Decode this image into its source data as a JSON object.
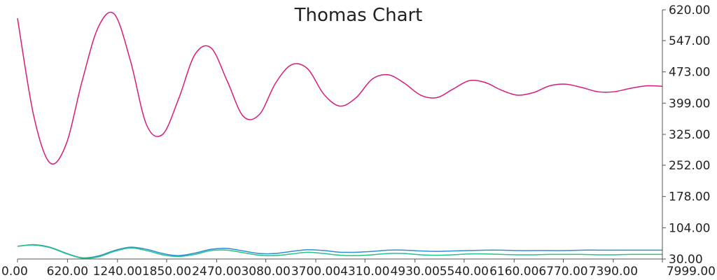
{
  "chart_data": {
    "type": "line",
    "title": "Thomas Chart",
    "xlabel": "",
    "ylabel": "",
    "xlim": [
      0,
      7999
    ],
    "ylim": [
      30,
      620
    ],
    "x_tick_labels": [
      "0.00",
      "620.00",
      "1240.00",
      "1850.00",
      "2470.00",
      "3080.00",
      "3700.00",
      "4310.00",
      "4930.00",
      "5540.00",
      "6160.00",
      "6770.00",
      "7390.00",
      "7999.00"
    ],
    "y_tick_labels": [
      "30.00",
      "104.00",
      "178.00",
      "252.00",
      "325.00",
      "399.00",
      "473.00",
      "547.00",
      "620.00"
    ],
    "y_axis_side": "right",
    "grid": false,
    "legend": "none",
    "series": [
      {
        "color": "#d81b7a",
        "x": [
          0,
          200,
          400,
          600,
          800,
          1000,
          1200,
          1400,
          1600,
          1800,
          2000,
          2200,
          2400,
          2600,
          2800,
          3000,
          3200,
          3400,
          3600,
          3800,
          4000,
          4200,
          4400,
          4600,
          4800,
          5000,
          5200,
          5400,
          5600,
          5800,
          6000,
          6200,
          6400,
          6600,
          6800,
          7000,
          7200,
          7400,
          7600,
          7800,
          7999
        ],
        "y": [
          600,
          370,
          258,
          300,
          450,
          578,
          610,
          500,
          348,
          325,
          410,
          514,
          530,
          452,
          368,
          372,
          446,
          490,
          480,
          420,
          392,
          412,
          456,
          466,
          446,
          418,
          412,
          432,
          452,
          448,
          430,
          418,
          424,
          440,
          444,
          436,
          426,
          426,
          434,
          440,
          439
        ]
      },
      {
        "color": "#2e8fd4",
        "x": [
          0,
          200,
          400,
          600,
          800,
          1000,
          1200,
          1400,
          1600,
          1800,
          2000,
          2200,
          2400,
          2600,
          2800,
          3000,
          3200,
          3400,
          3600,
          3800,
          4000,
          4200,
          4400,
          4600,
          4800,
          5000,
          5200,
          5400,
          5600,
          5800,
          6000,
          6200,
          6400,
          6600,
          6800,
          7000,
          7200,
          7400,
          7600,
          7800,
          7999
        ],
        "y": [
          60,
          64,
          58,
          44,
          33,
          37,
          50,
          58,
          53,
          43,
          38,
          44,
          53,
          55,
          49,
          43,
          43,
          48,
          52,
          50,
          46,
          46,
          48,
          51,
          51,
          49,
          48,
          49,
          50,
          51,
          51,
          50,
          50,
          50,
          50,
          51,
          51,
          51,
          51,
          51,
          51
        ]
      },
      {
        "color": "#27c28a",
        "x": [
          0,
          200,
          400,
          600,
          800,
          1000,
          1200,
          1400,
          1600,
          1800,
          2000,
          2200,
          2400,
          2600,
          2800,
          3000,
          3200,
          3400,
          3600,
          3800,
          4000,
          4200,
          4400,
          4600,
          4800,
          5000,
          5200,
          5400,
          5600,
          5800,
          6000,
          6200,
          6400,
          6600,
          6800,
          7000,
          7200,
          7400,
          7600,
          7800,
          7999
        ],
        "y": [
          60,
          63,
          57,
          43,
          32,
          35,
          48,
          56,
          50,
          40,
          36,
          41,
          50,
          51,
          45,
          39,
          38,
          42,
          46,
          43,
          39,
          38,
          40,
          43,
          43,
          40,
          39,
          40,
          42,
          42,
          41,
          40,
          40,
          41,
          41,
          41,
          40,
          40,
          41,
          41,
          41
        ]
      }
    ]
  }
}
